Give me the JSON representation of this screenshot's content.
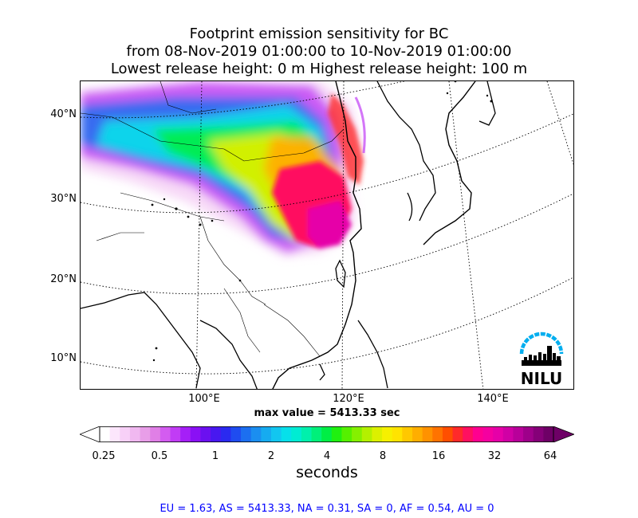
{
  "title": {
    "line1": "Footprint emission sensitivity for BC",
    "line2": "from 08-Nov-2019 01:00:00 to 10-Nov-2019 01:00:00",
    "line3": "Lowest release height: 0 m      Highest release height: 100 m"
  },
  "map": {
    "lat_labels": [
      "40°N",
      "30°N",
      "20°N",
      "10°N"
    ],
    "lon_labels": [
      "100°E",
      "120°E",
      "140°E"
    ],
    "max_value_text": "max value = 5413.33 sec",
    "logo_text": "NILU",
    "logo_color": "#00aeef"
  },
  "colorbar": {
    "ticks": [
      "0.25",
      "0.5",
      "1",
      "2",
      "4",
      "8",
      "16",
      "32",
      "64"
    ],
    "unit": "seconds",
    "colors": [
      "#ffffff",
      "#fce6fc",
      "#f7d0f7",
      "#f0b8f0",
      "#e89ee8",
      "#e07fe6",
      "#d35cf0",
      "#c13cf5",
      "#a51ff7",
      "#8a10f5",
      "#6b10f0",
      "#4818f0",
      "#2a2af0",
      "#1f4cf0",
      "#1c6ff0",
      "#1b8ef0",
      "#16abf0",
      "#12c6f0",
      "#06e0ea",
      "#00ecd3",
      "#00f0ac",
      "#00f07a",
      "#00ee45",
      "#20f010",
      "#55f000",
      "#85f000",
      "#b4f000",
      "#dcf000",
      "#f6f000",
      "#ffe300",
      "#ffc800",
      "#ffae00",
      "#ff9200",
      "#ff7300",
      "#ff4f00",
      "#ff2a2a",
      "#ff1060",
      "#ff0090",
      "#f500a0",
      "#e600a8",
      "#d000a5",
      "#b8009a",
      "#9e008a",
      "#850078",
      "#6e0066"
    ]
  },
  "footer": {
    "region_values": "EU = 1.63,  AS = 5413.33,  NA = 0.31,  SA = 0,  AF = 0.54,  AU = 0"
  }
}
